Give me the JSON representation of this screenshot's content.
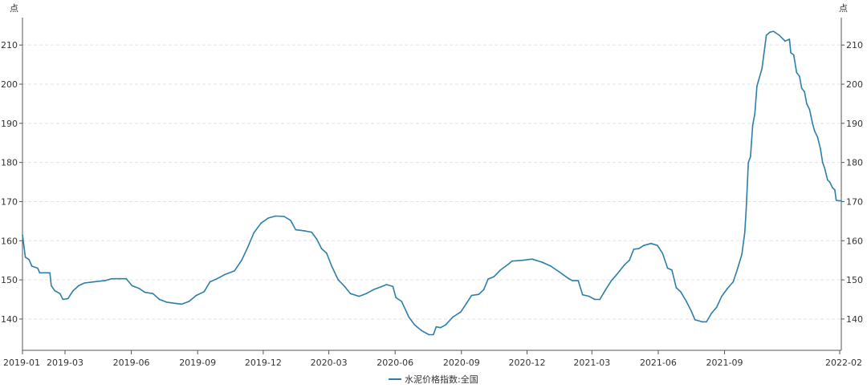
{
  "chart_data": {
    "type": "line",
    "title": "",
    "xlabel": "",
    "ylabel": "点",
    "ylabel_right": "点",
    "ylim": [
      132,
      217
    ],
    "y_ticks": [
      140,
      150,
      160,
      170,
      180,
      190,
      200,
      210
    ],
    "x_tick_labels": [
      "2019-01",
      "2019-03",
      "2019-06",
      "2019-09",
      "2019-12",
      "2020-03",
      "2020-06",
      "2020-09",
      "2020-12",
      "2021-03",
      "2021-06",
      "2021-09",
      "2022-02"
    ],
    "grid": true,
    "legend_position": "bottom-center",
    "series": [
      {
        "name": "水泥价格指数:全国",
        "color": "#2b7fa8",
        "points": [
          [
            "2019-01-01",
            161.5
          ],
          [
            "2019-01-05",
            155.8
          ],
          [
            "2019-01-10",
            155.2
          ],
          [
            "2019-01-14",
            153.5
          ],
          [
            "2019-01-22",
            153.0
          ],
          [
            "2019-01-25",
            151.8
          ],
          [
            "2019-02-08",
            151.8
          ],
          [
            "2019-02-10",
            148.5
          ],
          [
            "2019-02-15",
            147.2
          ],
          [
            "2019-02-22",
            146.5
          ],
          [
            "2019-02-26",
            145.0
          ],
          [
            "2019-03-05",
            145.2
          ],
          [
            "2019-03-12",
            147.2
          ],
          [
            "2019-03-20",
            148.5
          ],
          [
            "2019-03-28",
            149.2
          ],
          [
            "2019-04-10",
            149.5
          ],
          [
            "2019-04-25",
            149.8
          ],
          [
            "2019-05-05",
            150.3
          ],
          [
            "2019-05-25",
            150.3
          ],
          [
            "2019-06-02",
            148.5
          ],
          [
            "2019-06-12",
            147.8
          ],
          [
            "2019-06-20",
            146.8
          ],
          [
            "2019-07-01",
            146.5
          ],
          [
            "2019-07-10",
            145.0
          ],
          [
            "2019-07-20",
            144.3
          ],
          [
            "2019-08-01",
            144.0
          ],
          [
            "2019-08-10",
            143.8
          ],
          [
            "2019-08-20",
            144.5
          ],
          [
            "2019-08-30",
            146.0
          ],
          [
            "2019-09-10",
            147.0
          ],
          [
            "2019-09-18",
            149.5
          ],
          [
            "2019-09-28",
            150.3
          ],
          [
            "2019-10-08",
            151.3
          ],
          [
            "2019-10-22",
            152.3
          ],
          [
            "2019-11-01",
            155.0
          ],
          [
            "2019-11-10",
            158.5
          ],
          [
            "2019-11-18",
            162.0
          ],
          [
            "2019-11-28",
            164.5
          ],
          [
            "2019-12-08",
            165.8
          ],
          [
            "2019-12-18",
            166.3
          ],
          [
            "2019-12-30",
            166.2
          ],
          [
            "2020-01-08",
            165.2
          ],
          [
            "2020-01-15",
            162.8
          ],
          [
            "2020-01-28",
            162.5
          ],
          [
            "2020-02-06",
            162.2
          ],
          [
            "2020-02-13",
            160.5
          ],
          [
            "2020-02-20",
            158.0
          ],
          [
            "2020-02-27",
            156.8
          ],
          [
            "2020-03-05",
            153.5
          ],
          [
            "2020-03-14",
            150.0
          ],
          [
            "2020-03-22",
            148.5
          ],
          [
            "2020-03-31",
            146.5
          ],
          [
            "2020-04-12",
            145.8
          ],
          [
            "2020-04-22",
            146.5
          ],
          [
            "2020-05-02",
            147.5
          ],
          [
            "2020-05-12",
            148.2
          ],
          [
            "2020-05-20",
            148.8
          ],
          [
            "2020-05-29",
            148.3
          ],
          [
            "2020-06-02",
            145.5
          ],
          [
            "2020-06-10",
            144.5
          ],
          [
            "2020-06-20",
            140.5
          ],
          [
            "2020-06-28",
            138.5
          ],
          [
            "2020-07-08",
            137.0
          ],
          [
            "2020-07-18",
            136.0
          ],
          [
            "2020-07-24",
            136.0
          ],
          [
            "2020-07-28",
            138.0
          ],
          [
            "2020-08-03",
            137.8
          ],
          [
            "2020-08-10",
            138.5
          ],
          [
            "2020-08-20",
            140.5
          ],
          [
            "2020-08-31",
            141.8
          ],
          [
            "2020-09-08",
            144.0
          ],
          [
            "2020-09-15",
            146.0
          ],
          [
            "2020-09-25",
            146.3
          ],
          [
            "2020-10-02",
            147.5
          ],
          [
            "2020-10-08",
            150.2
          ],
          [
            "2020-10-16",
            150.8
          ],
          [
            "2020-10-25",
            152.5
          ],
          [
            "2020-11-05",
            154.0
          ],
          [
            "2020-11-10",
            154.8
          ],
          [
            "2020-11-25",
            155.0
          ],
          [
            "2020-12-08",
            155.3
          ],
          [
            "2020-12-22",
            154.5
          ],
          [
            "2021-01-03",
            153.5
          ],
          [
            "2021-01-15",
            152.0
          ],
          [
            "2021-01-28",
            150.3
          ],
          [
            "2021-02-02",
            149.8
          ],
          [
            "2021-02-10",
            149.8
          ],
          [
            "2021-02-16",
            146.2
          ],
          [
            "2021-02-25",
            145.8
          ],
          [
            "2021-03-05",
            145.0
          ],
          [
            "2021-03-12",
            145.0
          ],
          [
            "2021-03-20",
            147.5
          ],
          [
            "2021-03-28",
            149.8
          ],
          [
            "2021-04-05",
            151.5
          ],
          [
            "2021-04-15",
            153.8
          ],
          [
            "2021-04-22",
            155.0
          ],
          [
            "2021-04-28",
            157.8
          ],
          [
            "2021-05-05",
            158.0
          ],
          [
            "2021-05-12",
            158.8
          ],
          [
            "2021-05-22",
            159.3
          ],
          [
            "2021-05-31",
            158.8
          ],
          [
            "2021-06-07",
            156.8
          ],
          [
            "2021-06-14",
            153.0
          ],
          [
            "2021-06-20",
            152.5
          ],
          [
            "2021-06-26",
            148.0
          ],
          [
            "2021-07-02",
            147.0
          ],
          [
            "2021-07-10",
            144.5
          ],
          [
            "2021-07-17",
            142.0
          ],
          [
            "2021-07-22",
            139.8
          ],
          [
            "2021-08-01",
            139.3
          ],
          [
            "2021-08-07",
            139.3
          ],
          [
            "2021-08-14",
            141.5
          ],
          [
            "2021-08-21",
            143.0
          ],
          [
            "2021-08-28",
            145.8
          ],
          [
            "2021-09-05",
            147.8
          ],
          [
            "2021-09-13",
            149.5
          ],
          [
            "2021-09-19",
            152.8
          ],
          [
            "2021-09-25",
            156.5
          ],
          [
            "2021-09-29",
            162.0
          ],
          [
            "2021-10-01",
            168.0
          ],
          [
            "2021-10-04",
            180.0
          ],
          [
            "2021-10-07",
            181.5
          ],
          [
            "2021-10-10",
            189.5
          ],
          [
            "2021-10-13",
            192.5
          ],
          [
            "2021-10-16",
            199.5
          ],
          [
            "2021-10-23",
            204.0
          ],
          [
            "2021-10-29",
            212.5
          ],
          [
            "2021-11-03",
            213.3
          ],
          [
            "2021-11-08",
            213.5
          ],
          [
            "2021-11-16",
            212.5
          ],
          [
            "2021-11-24",
            211.0
          ],
          [
            "2021-11-30",
            211.5
          ],
          [
            "2021-12-02",
            208.0
          ],
          [
            "2021-12-06",
            207.5
          ],
          [
            "2021-12-10",
            203.0
          ],
          [
            "2021-12-14",
            202.0
          ],
          [
            "2021-12-17",
            199.0
          ],
          [
            "2021-12-21",
            198.0
          ],
          [
            "2021-12-24",
            195.0
          ],
          [
            "2021-12-28",
            193.5
          ],
          [
            "2022-01-01",
            190.0
          ],
          [
            "2022-01-04",
            188.0
          ],
          [
            "2022-01-08",
            186.5
          ],
          [
            "2022-01-12",
            183.5
          ],
          [
            "2022-01-15",
            180.0
          ],
          [
            "2022-01-18",
            178.5
          ],
          [
            "2022-01-22",
            175.5
          ],
          [
            "2022-01-25",
            175.0
          ],
          [
            "2022-01-29",
            173.5
          ],
          [
            "2022-02-01",
            173.0
          ],
          [
            "2022-02-03",
            170.3
          ],
          [
            "2022-02-10",
            170.2
          ]
        ]
      }
    ]
  }
}
